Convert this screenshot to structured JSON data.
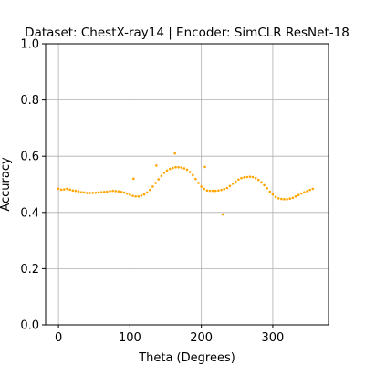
{
  "chart_data": {
    "type": "scatter",
    "title": "Dataset: ChestX-ray14 | Encoder: SimCLR ResNet-18",
    "xlabel": "Theta (Degrees)",
    "ylabel": "Accuracy",
    "xlim": [
      -18,
      378
    ],
    "ylim": [
      0.0,
      1.0
    ],
    "xticks": [
      0,
      100,
      200,
      300
    ],
    "yticks": [
      0.0,
      0.2,
      0.4,
      0.6,
      0.8,
      1.0
    ],
    "xtick_labels": [
      "0",
      "100",
      "200",
      "300"
    ],
    "ytick_labels": [
      "0.0",
      "0.2",
      "0.4",
      "0.6",
      "0.8",
      "1.0"
    ],
    "grid": true,
    "marker_color": "#FFA500",
    "x": [
      0,
      4,
      8,
      12,
      16,
      20,
      24,
      28,
      32,
      36,
      40,
      44,
      48,
      52,
      56,
      60,
      64,
      68,
      72,
      76,
      80,
      84,
      88,
      92,
      96,
      100,
      104,
      108,
      112,
      116,
      120,
      124,
      128,
      132,
      136,
      140,
      144,
      148,
      152,
      156,
      160,
      164,
      168,
      172,
      176,
      180,
      184,
      188,
      192,
      196,
      200,
      204,
      208,
      212,
      216,
      220,
      224,
      228,
      232,
      236,
      240,
      244,
      248,
      252,
      256,
      260,
      264,
      268,
      272,
      276,
      280,
      284,
      288,
      292,
      296,
      300,
      304,
      308,
      312,
      316,
      320,
      324,
      328,
      332,
      336,
      340,
      344,
      348,
      352,
      356,
      105,
      137,
      163,
      205,
      230
    ],
    "y": [
      0.484,
      0.481,
      0.482,
      0.484,
      0.481,
      0.478,
      0.477,
      0.475,
      0.472,
      0.471,
      0.469,
      0.469,
      0.47,
      0.47,
      0.471,
      0.472,
      0.473,
      0.474,
      0.476,
      0.477,
      0.476,
      0.475,
      0.473,
      0.471,
      0.467,
      0.463,
      0.459,
      0.457,
      0.457,
      0.46,
      0.464,
      0.471,
      0.48,
      0.492,
      0.505,
      0.518,
      0.53,
      0.541,
      0.549,
      0.555,
      0.558,
      0.561,
      0.561,
      0.56,
      0.557,
      0.552,
      0.544,
      0.533,
      0.519,
      0.505,
      0.492,
      0.484,
      0.478,
      0.477,
      0.477,
      0.477,
      0.478,
      0.48,
      0.483,
      0.487,
      0.494,
      0.502,
      0.51,
      0.517,
      0.522,
      0.525,
      0.526,
      0.527,
      0.526,
      0.522,
      0.516,
      0.507,
      0.497,
      0.486,
      0.474,
      0.464,
      0.455,
      0.45,
      0.448,
      0.447,
      0.447,
      0.449,
      0.452,
      0.457,
      0.462,
      0.467,
      0.472,
      0.476,
      0.48,
      0.484,
      0.52,
      0.567,
      0.61,
      0.562,
      0.393
    ]
  }
}
